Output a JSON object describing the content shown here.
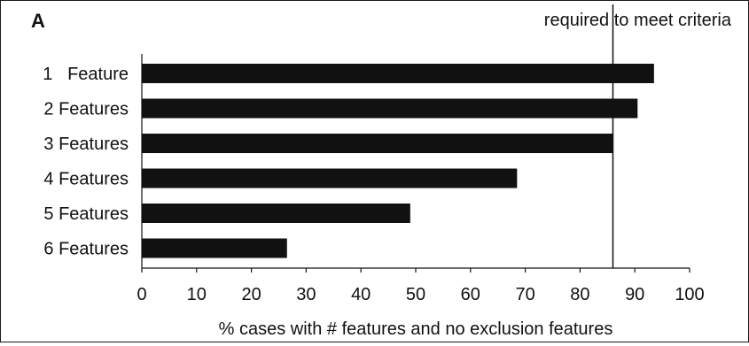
{
  "panel_label": "A",
  "chart_data": {
    "type": "bar",
    "orientation": "horizontal",
    "categories": [
      "1   Feature",
      "2 Features",
      "3 Features",
      "4 Features",
      "5 Features",
      "6 Features"
    ],
    "values": [
      93.5,
      90.5,
      86,
      68.5,
      49,
      26.5
    ],
    "xlabel": "% cases with # features and no exclusion features",
    "ylabel": "",
    "xlim": [
      0,
      100
    ],
    "xticks": [
      0,
      10,
      20,
      30,
      40,
      50,
      60,
      70,
      80,
      90,
      100
    ],
    "reference_line": {
      "value": 86,
      "label": "required to meet criteria"
    },
    "bar_color": "#111111",
    "grid": false
  }
}
